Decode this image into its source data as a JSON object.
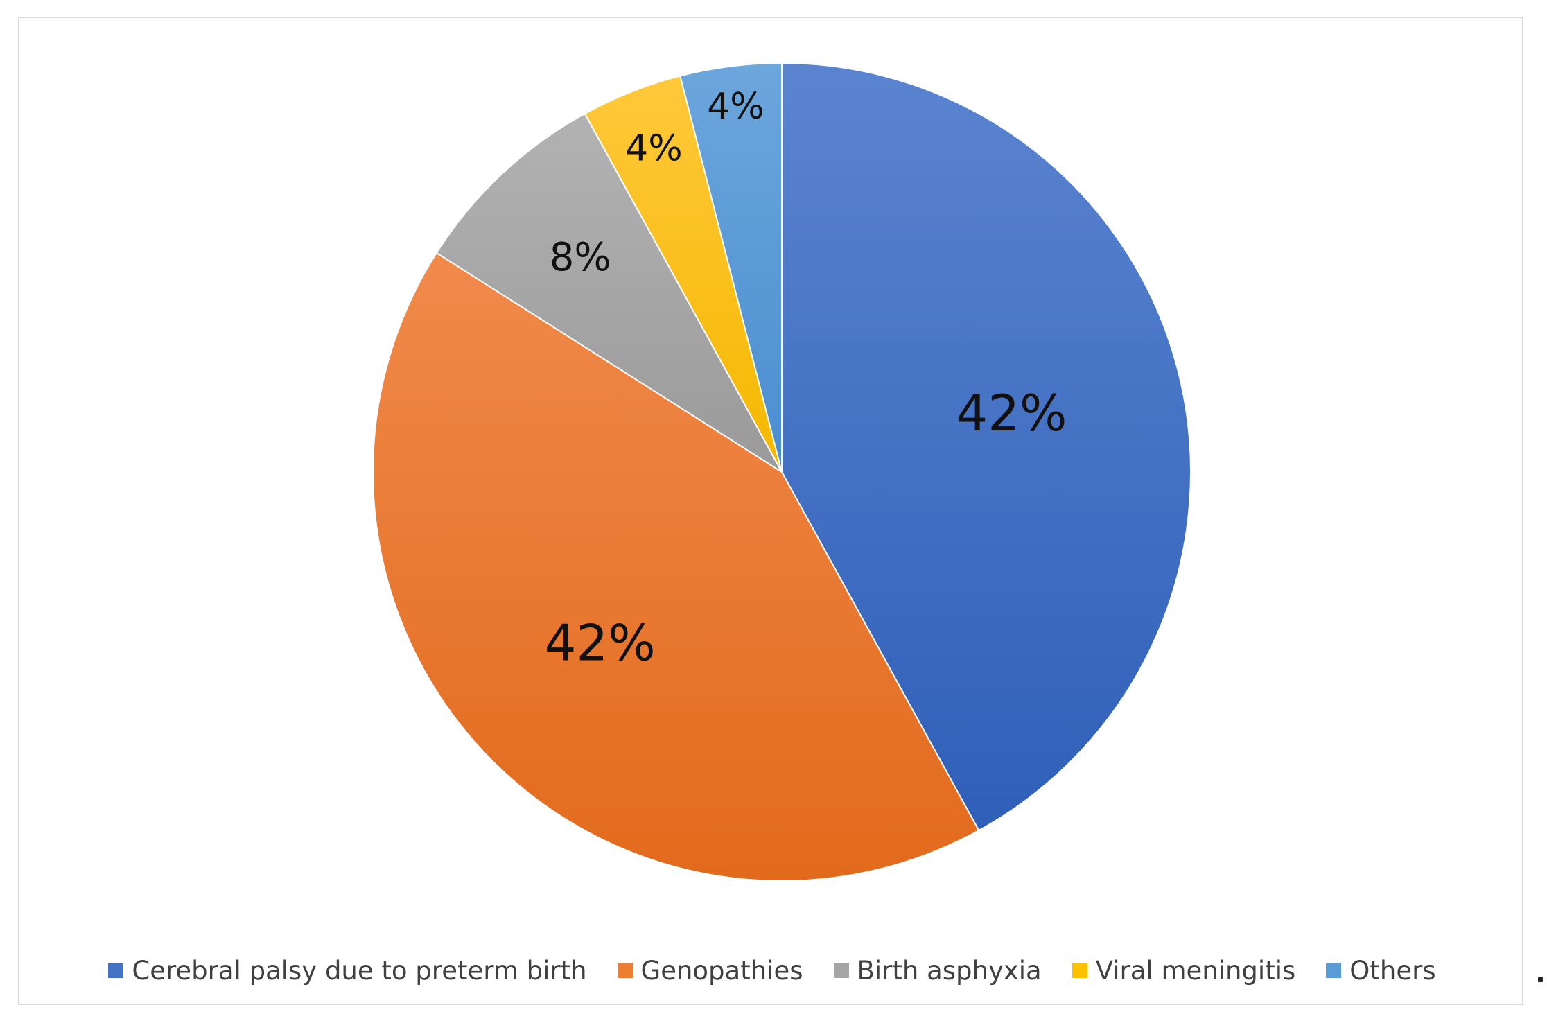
{
  "chart_data": {
    "type": "pie",
    "title": "",
    "start_angle_deg": 0,
    "direction": "clockwise",
    "legend_position": "bottom",
    "slices": [
      {
        "name": "Cerebral palsy due to preterm birth",
        "value": 42,
        "label": "42%",
        "color": "#4472C4",
        "color_light": "#5B84D0",
        "color_dark": "#2F5FB8"
      },
      {
        "name": "Genopathies",
        "value": 42,
        "label": "42%",
        "color": "#ED7D31",
        "color_light": "#F08A4B",
        "color_dark": "#E26A1C"
      },
      {
        "name": "Birth asphyxia",
        "value": 8,
        "label": "8%",
        "color": "#A5A5A5",
        "color_light": "#B2B2B2",
        "color_dark": "#9A9A9A"
      },
      {
        "name": "Viral meningitis",
        "value": 4,
        "label": "4%",
        "color": "#FFC000",
        "color_light": "#FFC83A",
        "color_dark": "#F5B800"
      },
      {
        "name": "Others",
        "value": 4,
        "label": "4%",
        "color": "#5B9BD5",
        "color_light": "#6CA6DC",
        "color_dark": "#4A8ED0"
      }
    ]
  }
}
